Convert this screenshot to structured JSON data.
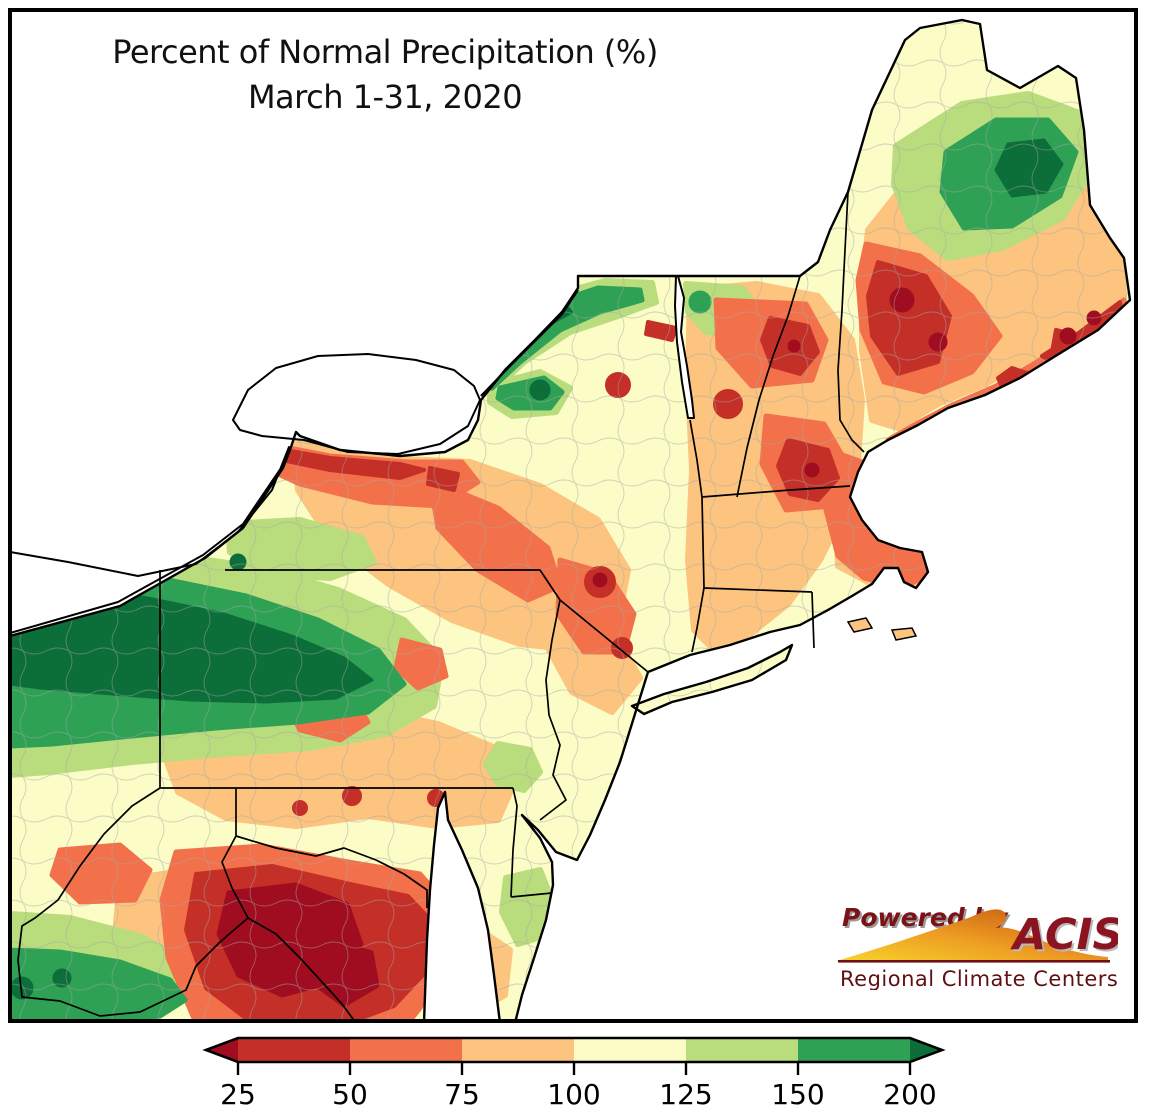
{
  "title": {
    "line1": "Percent of Normal Precipitation (%)",
    "line2": "March 1-31, 2020"
  },
  "legend": {
    "ticks": [
      "25",
      "50",
      "75",
      "100",
      "125",
      "150",
      "200"
    ],
    "palette": {
      "dark_red": "#a00d20",
      "red": "#c43027",
      "orange": "#f3714a",
      "light_orange": "#fcc47f",
      "pale_yellow": "#fbfcc6",
      "light_green": "#b9dc7d",
      "green": "#2ea155",
      "dark_green": "#0c6e38"
    },
    "segments": [
      {
        "label": "below-25",
        "color_key": "dark_red",
        "shape": "left-arrow"
      },
      {
        "label": "25-50",
        "color_key": "red"
      },
      {
        "label": "50-75",
        "color_key": "orange"
      },
      {
        "label": "75-100",
        "color_key": "light_orange"
      },
      {
        "label": "100-125",
        "color_key": "pale_yellow"
      },
      {
        "label": "125-150",
        "color_key": "light_green"
      },
      {
        "label": "150-200",
        "color_key": "green"
      },
      {
        "label": "above-200",
        "color_key": "dark_green",
        "shape": "right-arrow"
      }
    ]
  },
  "logo": {
    "powered_by": "Powered by",
    "name": "ACIS",
    "subtitle": "Regional Climate Centers",
    "text_color": "#7a1216"
  },
  "map": {
    "description": "Filled contour map of percent-of-normal precipitation over the northeastern United States; green = above normal, red = below normal"
  }
}
